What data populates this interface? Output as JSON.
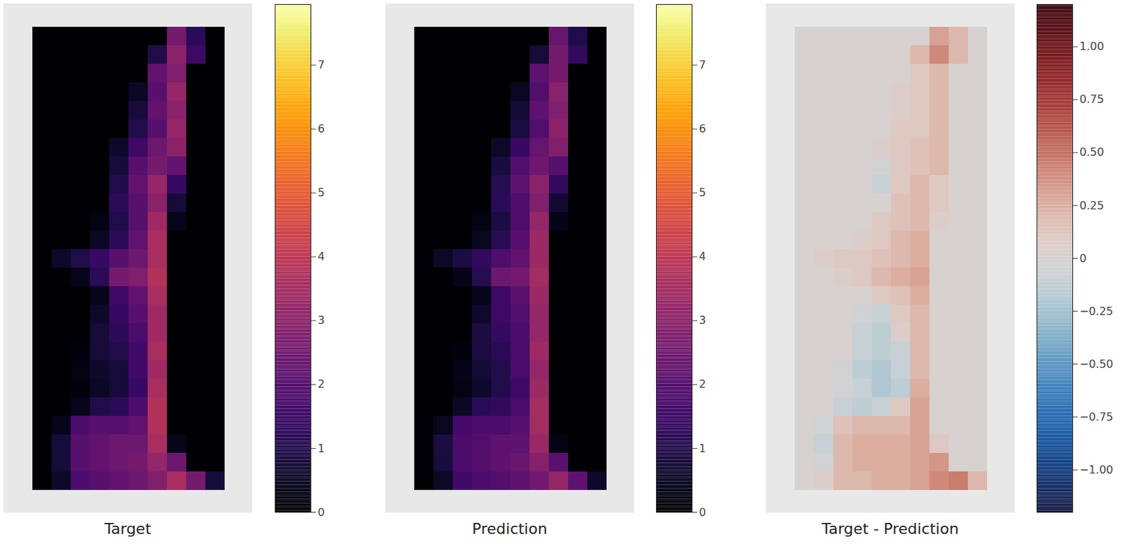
{
  "chart_data": [
    {
      "type": "heatmap",
      "title": "Target",
      "color": "inferno",
      "clim": [
        0,
        7.95
      ],
      "cticks": [
        0,
        1,
        2,
        3,
        4,
        5,
        6,
        7
      ],
      "cells": [
        [
          0,
          0,
          0,
          0,
          0,
          0,
          0,
          2.6,
          1.2,
          0
        ],
        [
          0,
          0,
          0,
          0,
          0,
          0,
          1.0,
          3.0,
          1.5,
          0
        ],
        [
          0,
          0,
          0,
          0,
          0,
          0,
          2.2,
          2.8,
          0,
          0
        ],
        [
          0,
          0,
          0,
          0,
          0,
          0.5,
          2.0,
          3.2,
          0,
          0
        ],
        [
          0,
          0,
          0,
          0,
          0,
          0.8,
          2.2,
          3.0,
          0,
          0
        ],
        [
          0,
          0,
          0,
          0,
          0,
          1.0,
          2.0,
          3.2,
          0,
          0
        ],
        [
          0,
          0,
          0,
          0,
          0.6,
          1.5,
          2.4,
          3.0,
          0,
          0
        ],
        [
          0,
          0,
          0,
          0,
          0.8,
          2.0,
          2.6,
          2.2,
          0,
          0
        ],
        [
          0,
          0,
          0,
          0,
          1.0,
          2.2,
          3.2,
          1.4,
          0,
          0
        ],
        [
          0,
          0,
          0,
          0,
          1.2,
          2.0,
          3.0,
          0.8,
          0,
          0
        ],
        [
          0,
          0,
          0,
          0.3,
          1.0,
          2.0,
          3.4,
          0.4,
          0,
          0
        ],
        [
          0,
          0,
          0,
          0.5,
          1.2,
          2.2,
          3.6,
          0,
          0,
          0
        ],
        [
          0,
          0.6,
          1.0,
          1.4,
          2.0,
          2.4,
          3.6,
          0,
          0,
          0
        ],
        [
          0,
          0,
          0.4,
          1.2,
          2.6,
          2.8,
          3.8,
          0,
          0,
          0
        ],
        [
          0,
          0,
          0,
          0.4,
          1.6,
          2.2,
          3.6,
          0,
          0,
          0
        ],
        [
          0,
          0,
          0,
          0.6,
          1.4,
          2.0,
          3.4,
          0,
          0,
          0
        ],
        [
          0,
          0,
          0,
          0.8,
          1.2,
          1.8,
          3.4,
          0,
          0,
          0
        ],
        [
          0,
          0,
          0.2,
          0.8,
          1.0,
          1.6,
          3.6,
          0,
          0,
          0
        ],
        [
          0,
          0,
          0.3,
          0.6,
          0.8,
          1.6,
          3.4,
          0,
          0,
          0
        ],
        [
          0,
          0,
          0.2,
          0.5,
          0.8,
          1.4,
          3.6,
          0,
          0,
          0
        ],
        [
          0,
          0,
          0.4,
          1.0,
          1.2,
          1.8,
          3.8,
          0,
          0,
          0
        ],
        [
          0,
          0.4,
          1.8,
          2.0,
          2.0,
          2.2,
          3.8,
          0,
          0,
          0
        ],
        [
          0,
          0.8,
          2.0,
          2.2,
          2.4,
          2.4,
          3.6,
          0.4,
          0,
          0
        ],
        [
          0,
          0.8,
          2.0,
          2.2,
          2.4,
          2.6,
          3.2,
          2.4,
          0,
          0
        ],
        [
          0,
          0.6,
          1.8,
          2.0,
          2.2,
          2.4,
          2.8,
          3.6,
          2.6,
          0.8
        ]
      ]
    },
    {
      "type": "heatmap",
      "title": "Prediction",
      "color": "inferno",
      "clim": [
        0,
        7.95
      ],
      "cticks": [
        0,
        1,
        2,
        3,
        4,
        5,
        6,
        7
      ],
      "cells": [
        [
          0,
          0,
          0,
          0,
          0,
          0,
          0,
          2.3,
          1.0,
          0
        ],
        [
          0,
          0,
          0,
          0,
          0,
          0,
          0.8,
          2.6,
          1.3,
          0
        ],
        [
          0,
          0,
          0,
          0,
          0,
          0,
          2.1,
          2.6,
          0,
          0
        ],
        [
          0,
          0,
          0,
          0,
          0,
          0.45,
          1.9,
          3.0,
          0,
          0
        ],
        [
          0,
          0,
          0,
          0,
          0,
          0.75,
          2.1,
          2.8,
          0,
          0
        ],
        [
          0,
          0,
          0,
          0,
          0,
          0.9,
          1.9,
          3.0,
          0,
          0
        ],
        [
          0,
          0,
          0,
          0,
          0.55,
          1.4,
          2.25,
          2.8,
          0,
          0
        ],
        [
          0,
          0,
          0,
          0,
          0.85,
          1.9,
          2.45,
          2.0,
          0,
          0
        ],
        [
          0,
          0,
          0,
          0,
          1.1,
          2.1,
          3.0,
          1.3,
          0,
          0
        ],
        [
          0,
          0,
          0,
          0,
          1.2,
          1.85,
          2.8,
          0.7,
          0,
          0
        ],
        [
          0,
          0,
          0,
          0.3,
          0.9,
          1.85,
          3.2,
          0.35,
          0,
          0
        ],
        [
          0,
          0,
          0,
          0.45,
          1.1,
          2.0,
          3.35,
          0,
          0,
          0
        ],
        [
          0,
          0.55,
          0.9,
          1.3,
          1.85,
          2.2,
          3.35,
          0,
          0,
          0
        ],
        [
          0,
          0,
          0.35,
          1.1,
          2.4,
          2.55,
          3.5,
          0,
          0,
          0
        ],
        [
          0,
          0,
          0,
          0.4,
          1.5,
          2.05,
          3.35,
          0,
          0,
          0
        ],
        [
          0,
          0,
          0,
          0.65,
          1.5,
          1.9,
          3.2,
          0,
          0,
          0
        ],
        [
          0,
          0,
          0,
          0.9,
          1.35,
          1.75,
          3.2,
          0,
          0,
          0
        ],
        [
          0,
          0,
          0.2,
          0.9,
          1.15,
          1.7,
          3.4,
          0,
          0,
          0
        ],
        [
          0,
          0,
          0.35,
          0.75,
          1.0,
          1.7,
          3.2,
          0,
          0,
          0
        ],
        [
          0,
          0,
          0.25,
          0.6,
          1.0,
          1.55,
          3.35,
          0,
          0,
          0
        ],
        [
          0,
          0,
          0.5,
          1.15,
          1.3,
          1.7,
          3.5,
          0,
          0,
          0
        ],
        [
          0,
          0.45,
          1.65,
          1.8,
          1.8,
          2.0,
          3.5,
          0,
          0,
          0
        ],
        [
          0,
          0.9,
          1.8,
          1.95,
          2.15,
          2.15,
          3.3,
          0.3,
          0,
          0
        ],
        [
          0,
          0.85,
          1.8,
          1.95,
          2.15,
          2.35,
          2.9,
          2.05,
          0,
          0
        ],
        [
          0,
          0.55,
          1.6,
          1.8,
          1.95,
          2.15,
          2.5,
          3.2,
          2.15,
          0.6
        ]
      ]
    },
    {
      "type": "heatmap",
      "title": "Target - Prediction",
      "color": "balance",
      "clim": [
        -1.2,
        1.2
      ],
      "cticks": [
        {
          "value": -1,
          "label": "−1.00"
        },
        {
          "value": -0.75,
          "label": "−0.75"
        },
        {
          "value": -0.5,
          "label": "−0.50"
        },
        {
          "value": -0.25,
          "label": "−0.25"
        },
        0,
        {
          "value": 0.25,
          "label": "0.25"
        },
        {
          "value": 0.5,
          "label": "0.50"
        },
        {
          "value": 0.75,
          "label": "0.75"
        },
        {
          "value": 1,
          "label": "1.00"
        }
      ],
      "cells": [
        [
          0,
          0,
          0,
          0,
          0,
          0,
          0,
          0.3,
          0.2,
          0
        ],
        [
          0,
          0,
          0,
          0,
          0,
          0,
          0.2,
          0.4,
          0.2,
          0
        ],
        [
          0,
          0,
          0,
          0,
          0,
          0,
          0.1,
          0.2,
          0,
          0
        ],
        [
          0,
          0,
          0,
          0,
          0,
          0.05,
          0.1,
          0.2,
          0,
          0
        ],
        [
          0,
          0,
          0,
          0,
          0,
          0.05,
          0.1,
          0.2,
          0,
          0
        ],
        [
          0,
          0,
          0,
          0,
          0,
          0.1,
          0.1,
          0.2,
          0,
          0
        ],
        [
          0,
          0,
          0,
          0,
          0.05,
          0.1,
          0.15,
          0.2,
          0,
          0
        ],
        [
          0,
          0,
          0,
          0,
          -0.05,
          0.1,
          0.15,
          0.2,
          0,
          0
        ],
        [
          0,
          0,
          0,
          0,
          -0.1,
          0.1,
          0.2,
          0.1,
          0,
          0
        ],
        [
          0,
          0,
          0,
          0,
          0,
          0.15,
          0.2,
          0.1,
          0,
          0
        ],
        [
          0,
          0,
          0,
          0,
          0.1,
          0.15,
          0.2,
          0.05,
          0,
          0
        ],
        [
          0,
          0,
          0,
          0.05,
          0.1,
          0.2,
          0.25,
          0,
          0,
          0
        ],
        [
          0,
          0.05,
          0.1,
          0.1,
          0.15,
          0.2,
          0.25,
          0,
          0,
          0
        ],
        [
          0,
          0,
          0.05,
          0.1,
          0.2,
          0.25,
          0.3,
          0,
          0,
          0
        ],
        [
          0,
          0,
          0,
          0,
          0.1,
          0.15,
          0.25,
          0,
          0,
          0
        ],
        [
          0,
          0,
          0,
          -0.05,
          -0.1,
          0.1,
          0.2,
          0,
          0,
          0
        ],
        [
          0,
          0,
          0,
          -0.1,
          -0.15,
          0.05,
          0.2,
          0,
          0,
          0
        ],
        [
          0,
          0,
          0,
          -0.1,
          -0.15,
          -0.1,
          0.2,
          0,
          0,
          0
        ],
        [
          0,
          0,
          -0.05,
          -0.15,
          -0.2,
          -0.1,
          0.2,
          0,
          0,
          0
        ],
        [
          0,
          0,
          -0.05,
          -0.1,
          -0.2,
          -0.15,
          0.25,
          0,
          0,
          0
        ],
        [
          0,
          0,
          -0.1,
          -0.15,
          -0.1,
          0.1,
          0.3,
          0,
          0,
          0
        ],
        [
          0,
          -0.05,
          0.15,
          0.2,
          0.2,
          0.2,
          0.3,
          0,
          0,
          0
        ],
        [
          0,
          -0.1,
          0.2,
          0.25,
          0.25,
          0.25,
          0.3,
          0.1,
          0,
          0
        ],
        [
          0,
          -0.05,
          0.2,
          0.25,
          0.25,
          0.25,
          0.3,
          0.35,
          0,
          0
        ],
        [
          0,
          0.05,
          0.2,
          0.2,
          0.25,
          0.25,
          0.3,
          0.4,
          0.45,
          0.2
        ]
      ]
    }
  ]
}
